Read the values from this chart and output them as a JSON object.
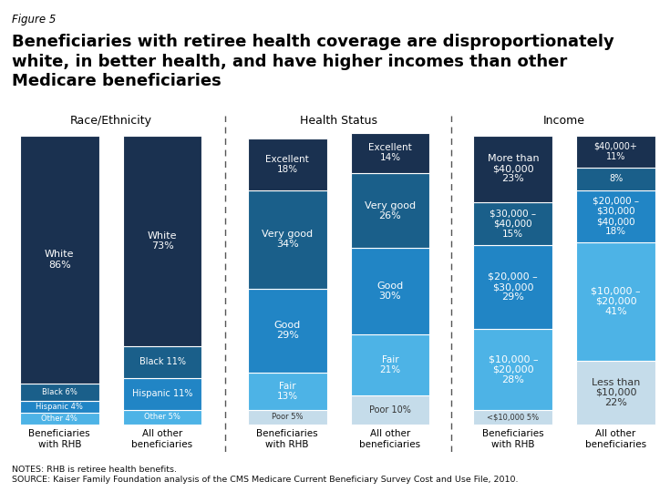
{
  "figure_label": "Figure 5",
  "title_line1": "Beneficiaries with retiree health coverage are disproportionately",
  "title_line2": "white, in better health, and have higher incomes than other",
  "title_line3": "Medicare beneficiaries",
  "notes_line1": "NOTES: RHB is retiree health benefits.",
  "notes_line2": "SOURCE: Kaiser Family Foundation analysis of the CMS Medicare Current Beneficiary Survey Cost and Use File, 2010.",
  "sections": [
    {
      "title": "Race/Ethnicity",
      "bars": [
        {
          "label": "Beneficiaries\nwith RHB",
          "segments": [
            {
              "label": "Other 4%",
              "value": 4,
              "color": "#4db3e6",
              "light": false
            },
            {
              "label": "Hispanic 4%",
              "value": 4,
              "color": "#2185c5",
              "light": false
            },
            {
              "label": "Black 6%",
              "value": 6,
              "color": "#1a5f8a",
              "light": false
            },
            {
              "label": "White\n86%",
              "value": 86,
              "color": "#1a3150",
              "light": false
            }
          ]
        },
        {
          "label": "All other\nbeneficiaries",
          "segments": [
            {
              "label": "Other 5%",
              "value": 5,
              "color": "#4db3e6",
              "light": false
            },
            {
              "label": "Hispanic 11%",
              "value": 11,
              "color": "#2185c5",
              "light": false
            },
            {
              "label": "Black 11%",
              "value": 11,
              "color": "#1a5f8a",
              "light": false
            },
            {
              "label": "White\n73%",
              "value": 73,
              "color": "#1a3150",
              "light": false
            }
          ]
        }
      ]
    },
    {
      "title": "Health Status",
      "bars": [
        {
          "label": "Beneficiaries\nwith RHB",
          "segments": [
            {
              "label": "Poor 5%",
              "value": 5,
              "color": "#c5dcea",
              "light": true
            },
            {
              "label": "Fair\n13%",
              "value": 13,
              "color": "#4db3e6",
              "light": false
            },
            {
              "label": "Good\n29%",
              "value": 29,
              "color": "#2185c5",
              "light": false
            },
            {
              "label": "Very good\n34%",
              "value": 34,
              "color": "#1a5f8a",
              "light": false
            },
            {
              "label": "Excellent\n18%",
              "value": 18,
              "color": "#1a3150",
              "light": false
            }
          ]
        },
        {
          "label": "All other\nbeneficiaries",
          "segments": [
            {
              "label": "Poor 10%",
              "value": 10,
              "color": "#c5dcea",
              "light": true
            },
            {
              "label": "Fair\n21%",
              "value": 21,
              "color": "#4db3e6",
              "light": false
            },
            {
              "label": "Good\n30%",
              "value": 30,
              "color": "#2185c5",
              "light": false
            },
            {
              "label": "Very good\n26%",
              "value": 26,
              "color": "#1a5f8a",
              "light": false
            },
            {
              "label": "Excellent\n14%",
              "value": 14,
              "color": "#1a3150",
              "light": false
            }
          ]
        }
      ]
    },
    {
      "title": "Income",
      "bars": [
        {
          "label": "Beneficiaries\nwith RHB",
          "segments": [
            {
              "label": "<$10,000 5%",
              "value": 5,
              "color": "#c5dcea",
              "light": true
            },
            {
              "label": "$10,000 –\n$20,000\n28%",
              "value": 28,
              "color": "#4db3e6",
              "light": false
            },
            {
              "label": "$20,000 –\n$30,000\n29%",
              "value": 29,
              "color": "#2185c5",
              "light": false
            },
            {
              "label": "$30,000 –\n$40,000\n15%",
              "value": 15,
              "color": "#1a5f8a",
              "light": false
            },
            {
              "label": "More than\n$40,000\n23%",
              "value": 23,
              "color": "#1a3150",
              "light": false
            }
          ]
        },
        {
          "label": "All other\nbeneficiaries",
          "segments": [
            {
              "label": "Less than\n$10,000\n22%",
              "value": 22,
              "color": "#c5dcea",
              "light": true
            },
            {
              "label": "$10,000 –\n$20,000\n41%",
              "value": 41,
              "color": "#4db3e6",
              "light": false
            },
            {
              "label": "$20,000 –\n$30,000\n$40,000\n18%",
              "value": 18,
              "color": "#2185c5",
              "light": false
            },
            {
              "label": "8%",
              "value": 8,
              "color": "#1a5f8a",
              "light": false
            },
            {
              "label": "$40,000+\n11%",
              "value": 11,
              "color": "#1a3150",
              "light": false
            }
          ]
        }
      ]
    }
  ]
}
